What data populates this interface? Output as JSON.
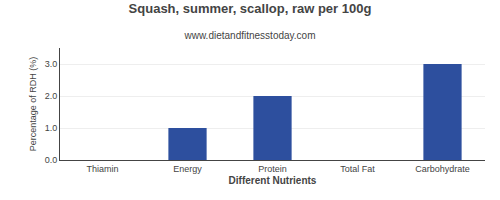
{
  "chart_data": {
    "type": "bar",
    "title": "Squash, summer, scallop, raw per 100g",
    "subtitle": "www.dietandfitnesstoday.com",
    "xlabel": "Different Nutrients",
    "ylabel": "Percentage of RDH (%)",
    "categories": [
      "Thiamin",
      "Energy",
      "Protein",
      "Total Fat",
      "Carbohydrate"
    ],
    "values": [
      0.0,
      1.0,
      2.0,
      0.0,
      3.0
    ],
    "color": "#2d4f9e",
    "ylim": [
      0,
      3.5
    ],
    "yticks": [
      {
        "value": 0,
        "label": "0.0"
      },
      {
        "value": 1,
        "label": "1.0"
      },
      {
        "value": 2,
        "label": "2.0"
      },
      {
        "value": 3,
        "label": "3.0"
      }
    ],
    "grid": true
  }
}
